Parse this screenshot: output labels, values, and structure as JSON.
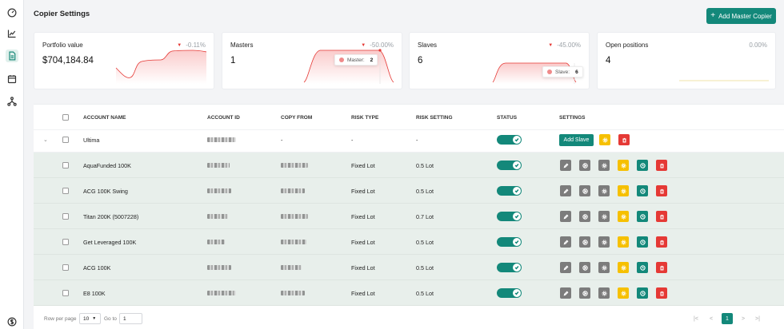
{
  "sidebar": {
    "items": [
      {
        "icon": "gauge-icon",
        "active": false
      },
      {
        "icon": "line-chart-icon",
        "active": false
      },
      {
        "icon": "document-icon",
        "active": true
      },
      {
        "icon": "calendar-icon",
        "active": false
      },
      {
        "icon": "network-icon",
        "active": false
      },
      {
        "icon": "dollar-circle-icon",
        "active": false
      }
    ]
  },
  "header": {
    "title": "Copier Settings",
    "add_master_label": "Add Master Copier",
    "add_master_icon": "+"
  },
  "cards": [
    {
      "title": "Portfolio value",
      "change": "-0.11%",
      "value": "$704,184.84"
    },
    {
      "title": "Masters",
      "change": "-50.00%",
      "value": "1",
      "tooltip_label": "Master:",
      "tooltip_value": "2"
    },
    {
      "title": "Slaves",
      "change": "-45.00%",
      "value": "6",
      "tooltip_label": "Slave:",
      "tooltip_value": "6"
    },
    {
      "title": "Open positions",
      "change": "0.00%",
      "value": "4"
    }
  ],
  "table": {
    "columns": [
      "ACCOUNT NAME",
      "ACCOUNT ID",
      "COPY FROM",
      "RISK TYPE",
      "RISK SETTING",
      "STATUS",
      "SETTINGS"
    ],
    "master_row": {
      "name": "Ultima",
      "copy_from": "-",
      "risk_type": "-",
      "risk_setting": "-",
      "add_slave_label": "Add Slave"
    },
    "rows": [
      {
        "name": "AquaFunded 100K",
        "risk_type": "Fixed Lot",
        "risk_setting": "0.5 Lot"
      },
      {
        "name": "ACG 100K Swing",
        "risk_type": "Fixed Lot",
        "risk_setting": "0.5 Lot"
      },
      {
        "name": "Titan 200K (5007228)",
        "risk_type": "Fixed Lot",
        "risk_setting": "0.7 Lot"
      },
      {
        "name": "Get Leveraged 100K",
        "risk_type": "Fixed Lot",
        "risk_setting": "0.5 Lot"
      },
      {
        "name": "ACG 100K",
        "risk_type": "Fixed Lot",
        "risk_setting": "0.5 Lot"
      },
      {
        "name": "E8 100K",
        "risk_type": "Fixed Lot",
        "risk_setting": "0.5 Lot"
      }
    ]
  },
  "footer": {
    "rows_per_page_label": "Row per page",
    "rows_per_page_value": "10",
    "goto_label": "Go to",
    "goto_value": "1",
    "current_page": "1"
  },
  "colors": {
    "accent": "#13887a",
    "negative": "#e53935",
    "warning": "#f6c000"
  }
}
